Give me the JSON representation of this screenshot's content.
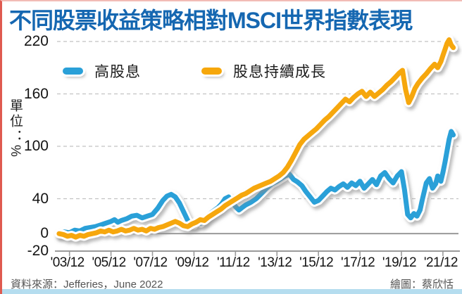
{
  "title": "不同股票收益策略相對MSCI世界指數表現",
  "colors": {
    "title": "#1567b1",
    "high_dividend": "#2aa0d8",
    "dividend_growth": "#f6a70b",
    "grid": "#c2c2c2",
    "axis": "#9a9a9a",
    "left_accent": "#df5a50",
    "bottom_accent": "#b5ddef"
  },
  "legend": [
    {
      "label": "高股息",
      "color": "#2aa0d8"
    },
    {
      "label": "股息持續成長",
      "color": "#f6a70b"
    }
  ],
  "y_axis": {
    "unit_label": "單位：%",
    "ticks": [
      220,
      160,
      100,
      40,
      0,
      -20
    ]
  },
  "x_axis": {
    "ticks": [
      {
        "label": "'03/12",
        "year": 2004
      },
      {
        "label": "'05/12",
        "year": 2006
      },
      {
        "label": "'07/12",
        "year": 2008
      },
      {
        "label": "'09/12",
        "year": 2010
      },
      {
        "label": "'11/12",
        "year": 2012
      },
      {
        "label": "'13/12",
        "year": 2014
      },
      {
        "label": "'15/12",
        "year": 2016
      },
      {
        "label": "'17/12",
        "year": 2018
      },
      {
        "label": "'19/12",
        "year": 2020
      },
      {
        "label": "'21/12",
        "year": 2022
      }
    ]
  },
  "footer": {
    "source": "資料來源：Jefferies，June 2022",
    "credit": "繪圖：蔡欣恬"
  },
  "chart_data": {
    "type": "line",
    "title": "不同股票收益策略相對MSCI世界指數表現",
    "ylabel": "單位：%",
    "ylim": [
      -20,
      220
    ],
    "x_domain": [
      2003.4,
      2022.75
    ],
    "grid_values": [
      220,
      160,
      100,
      40
    ],
    "zero_line": 0,
    "legend_position": "top-left",
    "series": [
      {
        "name": "高股息",
        "color": "#2aa0d8",
        "points": [
          [
            2003.5,
            0
          ],
          [
            2003.75,
            2
          ],
          [
            2004.0,
            1
          ],
          [
            2004.25,
            4
          ],
          [
            2004.5,
            3
          ],
          [
            2004.75,
            6
          ],
          [
            2005.0,
            7
          ],
          [
            2005.25,
            8
          ],
          [
            2005.5,
            10
          ],
          [
            2005.75,
            12
          ],
          [
            2006.0,
            14
          ],
          [
            2006.17,
            16
          ],
          [
            2006.33,
            13
          ],
          [
            2006.5,
            15
          ],
          [
            2006.75,
            17
          ],
          [
            2007.0,
            20
          ],
          [
            2007.25,
            21
          ],
          [
            2007.5,
            18
          ],
          [
            2007.75,
            20
          ],
          [
            2008.0,
            22
          ],
          [
            2008.25,
            29
          ],
          [
            2008.5,
            38
          ],
          [
            2008.7,
            43
          ],
          [
            2008.9,
            45
          ],
          [
            2009.1,
            42
          ],
          [
            2009.3,
            35
          ],
          [
            2009.5,
            25
          ],
          [
            2009.7,
            15
          ],
          [
            2009.85,
            11
          ],
          [
            2010.0,
            10
          ],
          [
            2010.17,
            15
          ],
          [
            2010.33,
            12
          ],
          [
            2010.5,
            17
          ],
          [
            2010.67,
            21
          ],
          [
            2010.83,
            24
          ],
          [
            2011.0,
            27
          ],
          [
            2011.17,
            30
          ],
          [
            2011.33,
            34
          ],
          [
            2011.5,
            40
          ],
          [
            2011.67,
            42
          ],
          [
            2011.83,
            37
          ],
          [
            2012.0,
            31
          ],
          [
            2012.17,
            27
          ],
          [
            2012.33,
            30
          ],
          [
            2012.5,
            33
          ],
          [
            2012.75,
            36
          ],
          [
            2013.0,
            40
          ],
          [
            2013.25,
            46
          ],
          [
            2013.5,
            52
          ],
          [
            2013.75,
            57
          ],
          [
            2014.0,
            60
          ],
          [
            2014.2,
            63
          ],
          [
            2014.4,
            66
          ],
          [
            2014.6,
            68
          ],
          [
            2014.8,
            62
          ],
          [
            2015.0,
            59
          ],
          [
            2015.2,
            55
          ],
          [
            2015.4,
            48
          ],
          [
            2015.6,
            42
          ],
          [
            2015.8,
            36
          ],
          [
            2016.0,
            38
          ],
          [
            2016.2,
            43
          ],
          [
            2016.4,
            48
          ],
          [
            2016.6,
            52
          ],
          [
            2016.8,
            50
          ],
          [
            2017.0,
            54
          ],
          [
            2017.2,
            57
          ],
          [
            2017.4,
            53
          ],
          [
            2017.6,
            58
          ],
          [
            2017.8,
            55
          ],
          [
            2018.0,
            60
          ],
          [
            2018.2,
            52
          ],
          [
            2018.4,
            57
          ],
          [
            2018.6,
            62
          ],
          [
            2018.8,
            56
          ],
          [
            2019.0,
            66
          ],
          [
            2019.2,
            70
          ],
          [
            2019.4,
            63
          ],
          [
            2019.6,
            58
          ],
          [
            2019.8,
            66
          ],
          [
            2020.0,
            71
          ],
          [
            2020.15,
            50
          ],
          [
            2020.3,
            22
          ],
          [
            2020.45,
            18
          ],
          [
            2020.6,
            23
          ],
          [
            2020.75,
            20
          ],
          [
            2020.9,
            27
          ],
          [
            2021.0,
            38
          ],
          [
            2021.2,
            58
          ],
          [
            2021.35,
            63
          ],
          [
            2021.5,
            52
          ],
          [
            2021.65,
            57
          ],
          [
            2021.75,
            66
          ],
          [
            2021.9,
            60
          ],
          [
            2022.0,
            70
          ],
          [
            2022.1,
            82
          ],
          [
            2022.2,
            95
          ],
          [
            2022.3,
            108
          ],
          [
            2022.4,
            117
          ],
          [
            2022.5,
            113
          ]
        ]
      },
      {
        "name": "股息持續成長",
        "color": "#f6a70b",
        "points": [
          [
            2003.5,
            0
          ],
          [
            2003.7,
            -1
          ],
          [
            2003.9,
            -3
          ],
          [
            2004.1,
            -2
          ],
          [
            2004.3,
            -4
          ],
          [
            2004.5,
            -2
          ],
          [
            2004.7,
            -3
          ],
          [
            2004.9,
            -1
          ],
          [
            2005.1,
            0
          ],
          [
            2005.3,
            1
          ],
          [
            2005.5,
            3
          ],
          [
            2005.7,
            2
          ],
          [
            2005.9,
            4
          ],
          [
            2006.1,
            2
          ],
          [
            2006.3,
            3
          ],
          [
            2006.5,
            5
          ],
          [
            2006.7,
            3
          ],
          [
            2006.9,
            4
          ],
          [
            2007.1,
            6
          ],
          [
            2007.3,
            4
          ],
          [
            2007.5,
            5
          ],
          [
            2007.7,
            3
          ],
          [
            2007.9,
            6
          ],
          [
            2008.1,
            5
          ],
          [
            2008.3,
            7
          ],
          [
            2008.5,
            8
          ],
          [
            2008.7,
            10
          ],
          [
            2008.9,
            12
          ],
          [
            2009.1,
            14
          ],
          [
            2009.3,
            12
          ],
          [
            2009.5,
            9
          ],
          [
            2009.7,
            8
          ],
          [
            2009.9,
            11
          ],
          [
            2010.1,
            13
          ],
          [
            2010.3,
            16
          ],
          [
            2010.5,
            15
          ],
          [
            2010.7,
            19
          ],
          [
            2010.9,
            22
          ],
          [
            2011.1,
            25
          ],
          [
            2011.3,
            28
          ],
          [
            2011.5,
            32
          ],
          [
            2011.7,
            35
          ],
          [
            2011.9,
            38
          ],
          [
            2012.1,
            41
          ],
          [
            2012.3,
            44
          ],
          [
            2012.5,
            46
          ],
          [
            2012.7,
            49
          ],
          [
            2012.9,
            52
          ],
          [
            2013.1,
            54
          ],
          [
            2013.3,
            56
          ],
          [
            2013.5,
            58
          ],
          [
            2013.7,
            60
          ],
          [
            2013.9,
            63
          ],
          [
            2014.1,
            66
          ],
          [
            2014.3,
            70
          ],
          [
            2014.5,
            76
          ],
          [
            2014.7,
            84
          ],
          [
            2014.9,
            93
          ],
          [
            2015.1,
            102
          ],
          [
            2015.3,
            108
          ],
          [
            2015.5,
            112
          ],
          [
            2015.7,
            116
          ],
          [
            2015.9,
            120
          ],
          [
            2016.1,
            125
          ],
          [
            2016.3,
            130
          ],
          [
            2016.5,
            134
          ],
          [
            2016.7,
            139
          ],
          [
            2016.9,
            144
          ],
          [
            2017.1,
            149
          ],
          [
            2017.3,
            154
          ],
          [
            2017.5,
            151
          ],
          [
            2017.7,
            156
          ],
          [
            2017.9,
            160
          ],
          [
            2018.1,
            163
          ],
          [
            2018.3,
            157
          ],
          [
            2018.5,
            162
          ],
          [
            2018.7,
            157
          ],
          [
            2018.9,
            161
          ],
          [
            2019.1,
            165
          ],
          [
            2019.3,
            170
          ],
          [
            2019.5,
            174
          ],
          [
            2019.7,
            179
          ],
          [
            2019.9,
            184
          ],
          [
            2020.05,
            187
          ],
          [
            2020.2,
            165
          ],
          [
            2020.35,
            150
          ],
          [
            2020.5,
            157
          ],
          [
            2020.65,
            166
          ],
          [
            2020.8,
            172
          ],
          [
            2021.0,
            178
          ],
          [
            2021.2,
            183
          ],
          [
            2021.4,
            189
          ],
          [
            2021.6,
            194
          ],
          [
            2021.75,
            190
          ],
          [
            2021.9,
            197
          ],
          [
            2022.0,
            204
          ],
          [
            2022.1,
            211
          ],
          [
            2022.2,
            218
          ],
          [
            2022.3,
            222
          ],
          [
            2022.4,
            216
          ],
          [
            2022.5,
            213
          ]
        ]
      }
    ]
  }
}
